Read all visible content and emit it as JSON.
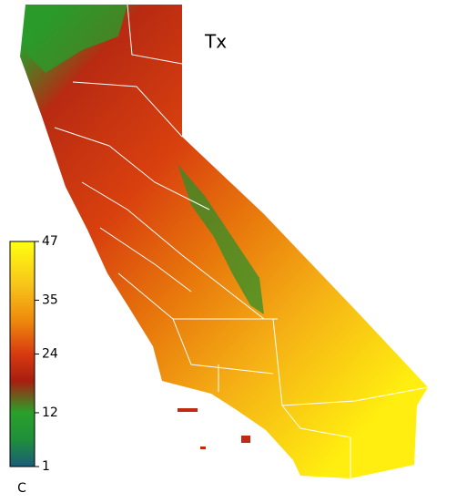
{
  "map": {
    "title": "Tx",
    "colorbar": {
      "unit": "C",
      "range": [
        1,
        47
      ],
      "ticks": [
        1,
        12,
        24,
        35,
        47
      ]
    }
  }
}
